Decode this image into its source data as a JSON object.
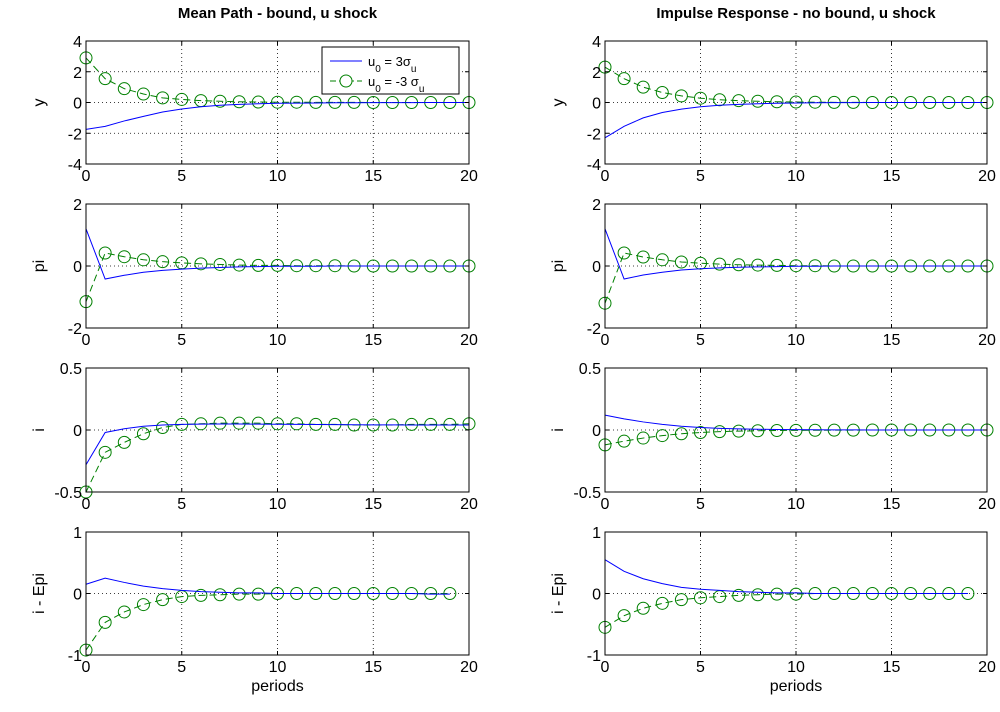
{
  "colors": {
    "series1": "#0000ff",
    "series2": "#008000",
    "grid": "#000000",
    "axis": "#000000"
  },
  "legend": {
    "entries": [
      {
        "name": "u_0 = 3σ_u",
        "parts": [
          [
            "u",
            ""
          ],
          [
            "0",
            "sub"
          ],
          [
            " =  3σ",
            ""
          ],
          [
            "u",
            "sub"
          ]
        ],
        "style": "solid"
      },
      {
        "name": "u_0 = -3 σ_u",
        "parts": [
          [
            "u",
            ""
          ],
          [
            "0",
            "sub"
          ],
          [
            " = -3 σ",
            ""
          ],
          [
            "u",
            "sub"
          ]
        ],
        "style": "dashed-circle"
      }
    ],
    "placement": "top-right of first panel"
  },
  "chart_data": [
    {
      "type": "line",
      "title": "Mean Path - bound, u shock",
      "ylabel": "y",
      "xlabel": "",
      "xlim": [
        0,
        20
      ],
      "ylim": [
        -4,
        4
      ],
      "xticks": [
        "0",
        "5",
        "10",
        "15",
        "20"
      ],
      "yticks": [
        "-4",
        "-2",
        "0",
        "2",
        "4"
      ],
      "grid": true,
      "x": [
        0,
        1,
        2,
        3,
        4,
        5,
        6,
        7,
        8,
        9,
        10,
        11,
        12,
        13,
        14,
        15,
        16,
        17,
        18,
        19,
        20
      ],
      "series": [
        {
          "name": "u_0 = 3σ_u",
          "values": [
            -1.75,
            -1.55,
            -1.2,
            -0.9,
            -0.62,
            -0.42,
            -0.28,
            -0.18,
            -0.12,
            -0.08,
            -0.05,
            -0.04,
            -0.03,
            -0.02,
            -0.02,
            -0.01,
            -0.01,
            -0.01,
            0,
            0,
            0
          ]
        },
        {
          "name": "u_0 = -3 σ_u",
          "values": [
            2.9,
            1.55,
            0.9,
            0.55,
            0.3,
            0.2,
            0.12,
            0.08,
            0.05,
            0.03,
            0.02,
            0.02,
            0.01,
            0.01,
            0.01,
            0,
            0,
            0,
            0,
            0,
            0
          ]
        }
      ]
    },
    {
      "type": "line",
      "title": "Impulse Response - no bound, u shock",
      "ylabel": "y",
      "xlabel": "",
      "xlim": [
        0,
        20
      ],
      "ylim": [
        -4,
        4
      ],
      "xticks": [
        "0",
        "5",
        "10",
        "15",
        "20"
      ],
      "yticks": [
        "-4",
        "-2",
        "0",
        "2",
        "4"
      ],
      "grid": true,
      "x": [
        0,
        1,
        2,
        3,
        4,
        5,
        6,
        7,
        8,
        9,
        10,
        11,
        12,
        13,
        14,
        15,
        16,
        17,
        18,
        19,
        20
      ],
      "series": [
        {
          "name": "u_0 = 3σ_u",
          "values": [
            -2.3,
            -1.55,
            -1.0,
            -0.65,
            -0.43,
            -0.28,
            -0.18,
            -0.12,
            -0.08,
            -0.05,
            -0.03,
            -0.02,
            -0.01,
            -0.01,
            0,
            0,
            0,
            0,
            0,
            0,
            0
          ]
        },
        {
          "name": "u_0 = -3 σ_u",
          "values": [
            2.3,
            1.55,
            1.0,
            0.65,
            0.43,
            0.28,
            0.18,
            0.12,
            0.08,
            0.05,
            0.03,
            0.02,
            0.01,
            0.01,
            0,
            0,
            0,
            0,
            0,
            0,
            0
          ]
        }
      ]
    },
    {
      "type": "line",
      "title": "",
      "ylabel": "pi",
      "xlabel": "",
      "xlim": [
        0,
        20
      ],
      "ylim": [
        -2,
        2
      ],
      "xticks": [
        "0",
        "5",
        "10",
        "15",
        "20"
      ],
      "yticks": [
        "-2",
        "0",
        "2"
      ],
      "grid": true,
      "x": [
        0,
        1,
        2,
        3,
        4,
        5,
        6,
        7,
        8,
        9,
        10,
        11,
        12,
        13,
        14,
        15,
        16,
        17,
        18,
        19,
        20
      ],
      "series": [
        {
          "name": "u_0 = 3σ_u",
          "values": [
            1.2,
            -0.42,
            -0.3,
            -0.2,
            -0.14,
            -0.1,
            -0.07,
            -0.05,
            -0.03,
            -0.02,
            -0.01,
            -0.01,
            -0.01,
            0,
            0,
            0,
            0,
            0,
            0,
            0,
            0
          ]
        },
        {
          "name": "u_0 = -3 σ_u",
          "values": [
            -1.15,
            0.42,
            0.3,
            0.2,
            0.14,
            0.1,
            0.07,
            0.05,
            0.03,
            0.02,
            0.02,
            0.01,
            0.01,
            0.01,
            0,
            0,
            0,
            0,
            0,
            0,
            0
          ]
        }
      ]
    },
    {
      "type": "line",
      "title": "",
      "ylabel": "pi",
      "xlabel": "",
      "xlim": [
        0,
        20
      ],
      "ylim": [
        -2,
        2
      ],
      "xticks": [
        "0",
        "5",
        "10",
        "15",
        "20"
      ],
      "yticks": [
        "-2",
        "0",
        "2"
      ],
      "grid": true,
      "x": [
        0,
        1,
        2,
        3,
        4,
        5,
        6,
        7,
        8,
        9,
        10,
        11,
        12,
        13,
        14,
        15,
        16,
        17,
        18,
        19,
        20
      ],
      "series": [
        {
          "name": "u_0 = 3σ_u",
          "values": [
            1.2,
            -0.42,
            -0.29,
            -0.2,
            -0.13,
            -0.09,
            -0.06,
            -0.04,
            -0.03,
            -0.02,
            -0.01,
            -0.01,
            0,
            0,
            0,
            0,
            0,
            0,
            0,
            0,
            0
          ]
        },
        {
          "name": "u_0 = -3 σ_u",
          "values": [
            -1.2,
            0.42,
            0.29,
            0.2,
            0.13,
            0.09,
            0.06,
            0.04,
            0.03,
            0.02,
            0.01,
            0.01,
            0,
            0,
            0,
            0,
            0,
            0,
            0,
            0,
            0
          ]
        }
      ]
    },
    {
      "type": "line",
      "title": "",
      "ylabel": "i",
      "xlabel": "",
      "xlim": [
        0,
        20
      ],
      "ylim": [
        -0.5,
        0.5
      ],
      "xticks": [
        "0",
        "5",
        "10",
        "15",
        "20"
      ],
      "yticks": [
        "-0.5",
        "0",
        "0.5"
      ],
      "grid": true,
      "x": [
        0,
        1,
        2,
        3,
        4,
        5,
        6,
        7,
        8,
        9,
        10,
        11,
        12,
        13,
        14,
        15,
        16,
        17,
        18,
        19,
        20
      ],
      "series": [
        {
          "name": "u_0 = 3σ_u",
          "values": [
            -0.28,
            -0.02,
            0.01,
            0.03,
            0.04,
            0.045,
            0.047,
            0.048,
            0.048,
            0.047,
            0.046,
            0.045,
            0.044,
            0.043,
            0.042,
            0.041,
            0.041,
            0.04,
            0.04,
            0.04,
            0.04
          ]
        },
        {
          "name": "u_0 = -3 σ_u",
          "values": [
            -0.5,
            -0.18,
            -0.1,
            -0.03,
            0.02,
            0.045,
            0.05,
            0.055,
            0.055,
            0.055,
            0.05,
            0.05,
            0.045,
            0.045,
            0.04,
            0.04,
            0.04,
            0.045,
            0.045,
            0.045,
            0.05
          ]
        }
      ]
    },
    {
      "type": "line",
      "title": "",
      "ylabel": "i",
      "xlabel": "",
      "xlim": [
        0,
        20
      ],
      "ylim": [
        -0.5,
        0.5
      ],
      "xticks": [
        "0",
        "5",
        "10",
        "15",
        "20"
      ],
      "yticks": [
        "-0.5",
        "0",
        "0.5"
      ],
      "grid": true,
      "x": [
        0,
        1,
        2,
        3,
        4,
        5,
        6,
        7,
        8,
        9,
        10,
        11,
        12,
        13,
        14,
        15,
        16,
        17,
        18,
        19,
        20
      ],
      "series": [
        {
          "name": "u_0 = 3σ_u",
          "values": [
            0.12,
            0.09,
            0.065,
            0.045,
            0.03,
            0.02,
            0.013,
            0.009,
            0.006,
            0.004,
            0.003,
            0.002,
            0.001,
            0.001,
            0,
            0,
            0,
            0,
            0,
            0,
            0
          ]
        },
        {
          "name": "u_0 = -3 σ_u",
          "values": [
            -0.12,
            -0.09,
            -0.065,
            -0.045,
            -0.03,
            -0.02,
            -0.013,
            -0.009,
            -0.006,
            -0.004,
            -0.003,
            -0.002,
            -0.001,
            -0.001,
            0,
            0,
            0,
            0,
            0,
            0,
            0
          ]
        }
      ]
    },
    {
      "type": "line",
      "title": "",
      "ylabel": "i - Epi",
      "xlabel": "periods",
      "xlim": [
        0,
        20
      ],
      "ylim": [
        -1,
        1
      ],
      "xticks": [
        "0",
        "5",
        "10",
        "15",
        "20"
      ],
      "yticks": [
        "-1",
        "0",
        "1"
      ],
      "grid": true,
      "x": [
        0,
        1,
        2,
        3,
        4,
        5,
        6,
        7,
        8,
        9,
        10,
        11,
        12,
        13,
        14,
        15,
        16,
        17,
        18,
        19
      ],
      "series": [
        {
          "name": "u_0 = 3σ_u",
          "values": [
            0.15,
            0.25,
            0.18,
            0.12,
            0.08,
            0.05,
            0.03,
            0.02,
            0.01,
            0.01,
            0,
            0,
            0,
            0,
            0,
            0,
            0,
            0,
            -0.01,
            -0.01
          ]
        },
        {
          "name": "u_0 = -3 σ_u",
          "values": [
            -0.92,
            -0.47,
            -0.3,
            -0.18,
            -0.1,
            -0.05,
            -0.03,
            -0.02,
            -0.01,
            -0.01,
            0,
            0,
            0,
            0,
            0,
            0,
            0,
            0,
            0,
            0
          ]
        }
      ]
    },
    {
      "type": "line",
      "title": "",
      "ylabel": "i - Epi",
      "xlabel": "periods",
      "xlim": [
        0,
        20
      ],
      "ylim": [
        -1,
        1
      ],
      "xticks": [
        "0",
        "5",
        "10",
        "15",
        "20"
      ],
      "yticks": [
        "-1",
        "0",
        "1"
      ],
      "grid": true,
      "x": [
        0,
        1,
        2,
        3,
        4,
        5,
        6,
        7,
        8,
        9,
        10,
        11,
        12,
        13,
        14,
        15,
        16,
        17,
        18,
        19
      ],
      "series": [
        {
          "name": "u_0 = 3σ_u",
          "values": [
            0.55,
            0.36,
            0.24,
            0.16,
            0.1,
            0.07,
            0.05,
            0.03,
            0.02,
            0.01,
            0.01,
            0,
            0,
            0,
            0,
            0,
            0,
            0,
            0,
            0
          ]
        },
        {
          "name": "u_0 = -3 σ_u",
          "values": [
            -0.55,
            -0.36,
            -0.24,
            -0.16,
            -0.1,
            -0.07,
            -0.05,
            -0.03,
            -0.02,
            -0.01,
            -0.01,
            0,
            0,
            0,
            0,
            0,
            0,
            0,
            0,
            0
          ]
        }
      ]
    }
  ]
}
